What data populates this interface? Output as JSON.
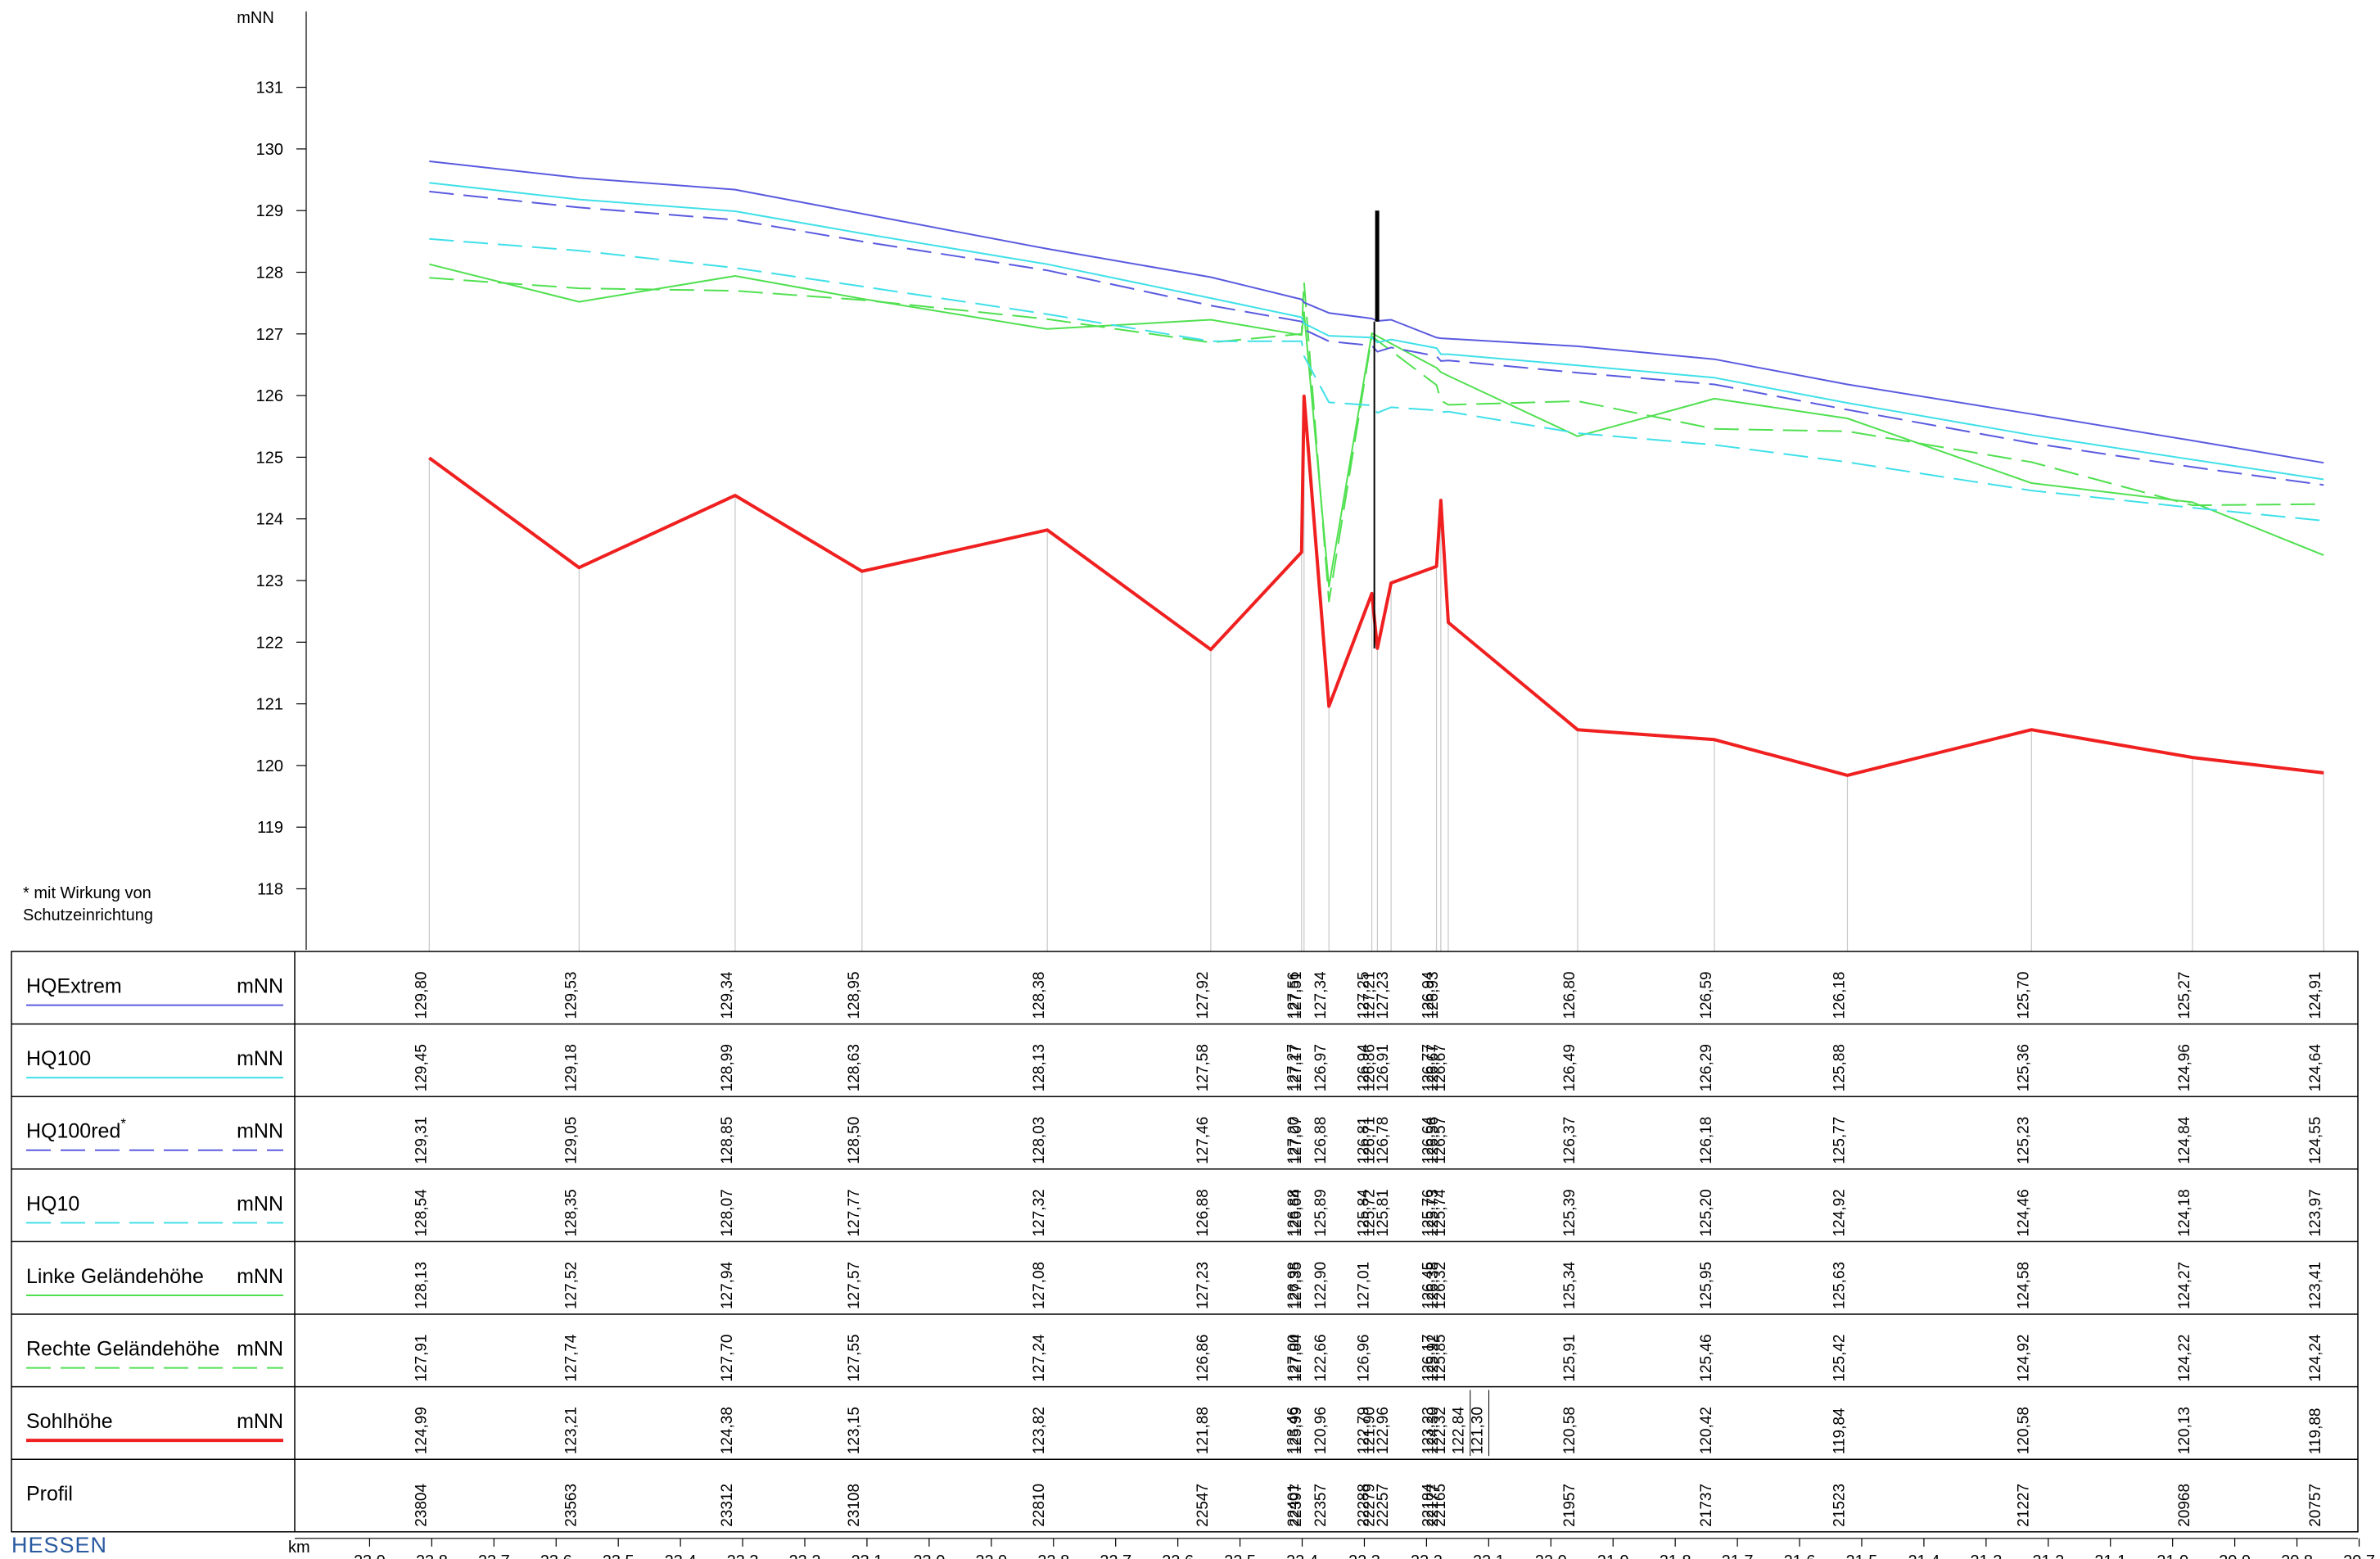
{
  "chart_data": {
    "type": "line",
    "title": "",
    "ylabel": "mNN",
    "xlabel": "km",
    "ylim": [
      117,
      132
    ],
    "yticks": [
      118,
      119,
      120,
      121,
      122,
      123,
      124,
      125,
      126,
      127,
      128,
      129,
      130,
      131
    ],
    "xlim": [
      24.05,
      20.7
    ],
    "xticks": [
      "23,9",
      "23,8",
      "23,7",
      "23,6",
      "23,5",
      "23,4",
      "23,3",
      "23,2",
      "23,1",
      "23,0",
      "22,9",
      "22,8",
      "22,7",
      "22,6",
      "22,5",
      "22,4",
      "22,3",
      "22,2",
      "22,1",
      "22,0",
      "21,9",
      "21,8",
      "21,7",
      "21,6",
      "21,5",
      "21,4",
      "21,3",
      "21,2",
      "21,1",
      "21,0",
      "20,9",
      "20,8",
      "20,7"
    ],
    "footnote": "* mit Wirkung von Schutzeinrichtung",
    "brand": "HESSEN",
    "profiles": [
      "23804",
      "23563",
      "23312",
      "23108",
      "22810",
      "22547",
      "22401",
      "22397",
      "22357",
      "22288",
      "22279",
      "22257",
      "22184",
      "22177",
      "22165",
      "21957",
      "21737",
      "21523",
      "21227",
      "20968",
      "20757"
    ],
    "profile_km": [
      23.804,
      23.563,
      23.312,
      23.108,
      22.81,
      22.547,
      22.401,
      22.397,
      22.357,
      22.288,
      22.279,
      22.257,
      22.184,
      22.177,
      22.165,
      21.957,
      21.737,
      21.523,
      21.227,
      20.968,
      20.757
    ],
    "rows": [
      {
        "key": "hqextrem",
        "label": "HQExtrem",
        "unit": "mNN",
        "color": "#5a5ae0",
        "dash": "",
        "values": [
          "129,80",
          "129,53",
          "129,34",
          "128,95",
          "128,38",
          "127,92",
          "127,56",
          "127,51",
          "127,34",
          "127,25",
          "127,21",
          "127,23",
          "126,94",
          "126,93",
          "",
          "126,80",
          "126,59",
          "126,18",
          "125,70",
          "125,27",
          "124,91"
        ]
      },
      {
        "key": "hq100",
        "label": "HQ100",
        "unit": "mNN",
        "color": "#40e0e8",
        "dash": "",
        "values": [
          "129,45",
          "129,18",
          "128,99",
          "128,63",
          "128,13",
          "127,58",
          "127,27",
          "127,17",
          "126,97",
          "126,94",
          "126,86",
          "126,91",
          "126,77",
          "126,67",
          "126,67",
          "126,49",
          "126,29",
          "125,88",
          "125,36",
          "124,96",
          "124,64"
        ]
      },
      {
        "key": "hq100red",
        "label": "HQ100red",
        "superscript": "*",
        "unit": "mNN",
        "color": "#5a5ae0",
        "dash": "30,12",
        "values": [
          "129,31",
          "129,05",
          "128,85",
          "128,50",
          "128,03",
          "127,46",
          "127,20",
          "127,07",
          "126,88",
          "126,81",
          "126,71",
          "126,78",
          "126,64",
          "126,56",
          "126,57",
          "126,37",
          "126,18",
          "125,77",
          "125,23",
          "124,84",
          "124,55"
        ]
      },
      {
        "key": "hq10",
        "label": "HQ10",
        "unit": "mNN",
        "color": "#40e0e8",
        "dash": "30,12",
        "values": [
          "128,54",
          "128,35",
          "128,07",
          "127,77",
          "127,32",
          "126,88",
          "126,88",
          "126,64",
          "125,89",
          "125,84",
          "125,72",
          "125,81",
          "125,76",
          "125,73",
          "125,74",
          "125,39",
          "125,20",
          "124,92",
          "124,46",
          "124,18",
          "123,97"
        ]
      },
      {
        "key": "linke",
        "label": "Linke Geländehöhe",
        "unit": "mNN",
        "color": "#50e050",
        "dash": "",
        "values": [
          "128,13",
          "127,52",
          "127,94",
          "127,57",
          "127,08",
          "127,23",
          "126,98",
          "127,35",
          "122,90",
          "127,01",
          "",
          "",
          "126,45",
          "126,38",
          "126,32",
          "125,34",
          "125,95",
          "125,63",
          "124,58",
          "124,27",
          "123,41"
        ]
      },
      {
        "key": "rechte",
        "label": "Rechte Geländehöhe",
        "unit": "mNN",
        "color": "#50e050",
        "dash": "30,12",
        "values": [
          "127,91",
          "127,74",
          "127,70",
          "127,55",
          "127,24",
          "126,86",
          "127,00",
          "127,84",
          "122,66",
          "126,96",
          "",
          "",
          "126,17",
          "125,92",
          "125,85",
          "125,91",
          "125,46",
          "125,42",
          "124,92",
          "124,22",
          "124,24"
        ]
      },
      {
        "key": "sohl",
        "label": "Sohlhöhe",
        "unit": "mNN",
        "color": "#f02020",
        "dash": "",
        "values": [
          "124,99",
          "123,21",
          "124,38",
          "123,15",
          "123,82",
          "121,88",
          "123,46",
          "125,99",
          "120,96",
          "122,79",
          "121,90",
          "122,96",
          "123,23",
          "124,30",
          "122,32",
          "120,58",
          "120,42",
          "119,84",
          "120,58",
          "120,13",
          "119,88"
        ],
        "extra": [
          {
            "km": 22.135,
            "value": "122,84"
          },
          {
            "km": 22.105,
            "value": "121,30"
          }
        ]
      },
      {
        "key": "profil",
        "label": "Profil",
        "unit": "",
        "color": "",
        "dash": "",
        "values": []
      }
    ]
  }
}
